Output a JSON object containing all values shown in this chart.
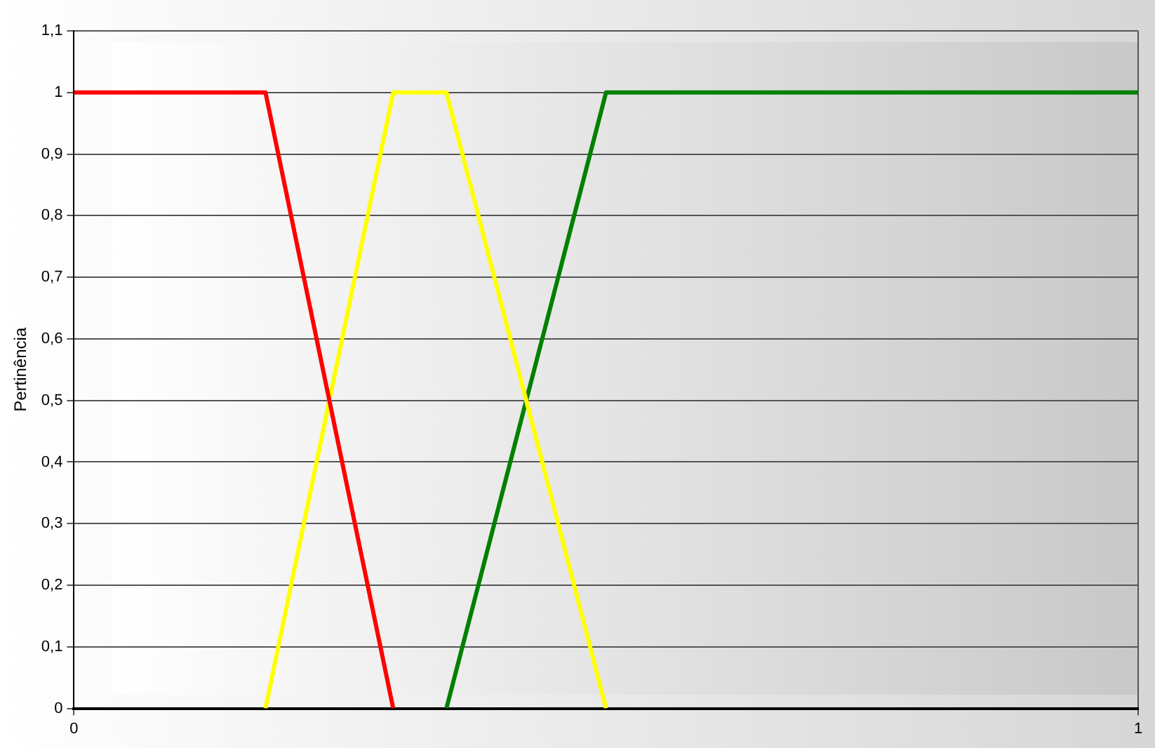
{
  "chart_data": {
    "type": "line",
    "ylabel": "Pertinência",
    "xlim": [
      0,
      1
    ],
    "xticks": [
      0,
      1
    ],
    "ylim": [
      0,
      1.1
    ],
    "yticks": [
      0,
      {
        "value": 0.1,
        "label": "0,1"
      },
      {
        "value": 0.2,
        "label": "0,2"
      },
      {
        "value": 0.3,
        "label": "0,3"
      },
      {
        "value": 0.4,
        "label": "0,4"
      },
      {
        "value": 0.5,
        "label": "0,5"
      },
      {
        "value": 0.6,
        "label": "0,6"
      },
      {
        "value": 0.7,
        "label": "0,7"
      },
      {
        "value": 0.8,
        "label": "0,8"
      },
      {
        "value": 0.9,
        "label": "0,9"
      },
      1,
      {
        "value": 1.1,
        "label": "1,1"
      }
    ],
    "grid": true,
    "line_style": "solid",
    "legend": false,
    "series": [
      {
        "color": "#ff0000",
        "x": [
          0,
          0.18,
          0.3
        ],
        "values": [
          1,
          1,
          0
        ]
      },
      {
        "color": "#ffff00",
        "x": [
          0.18,
          0.3,
          0.35,
          0.5
        ],
        "values": [
          0,
          1,
          1,
          0
        ]
      },
      {
        "color": "#008000",
        "x": [
          0.35,
          0.5,
          1
        ],
        "values": [
          0,
          1,
          1
        ]
      }
    ]
  }
}
